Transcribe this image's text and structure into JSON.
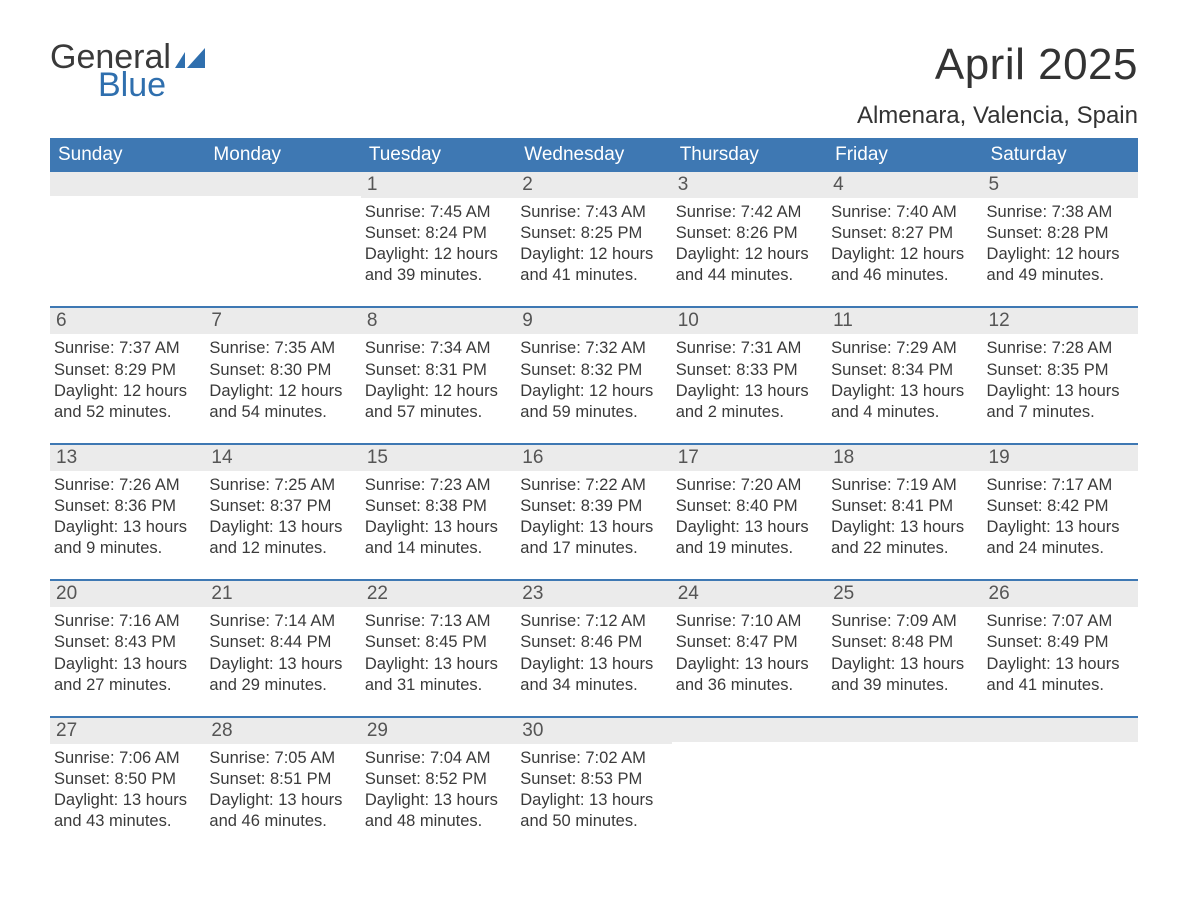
{
  "brand": {
    "line1": "General",
    "line2": "Blue",
    "color1": "#3a3a3a",
    "color2": "#2f6fae"
  },
  "header": {
    "month_title": "April 2025",
    "location": "Almenara, Valencia, Spain"
  },
  "styling": {
    "page_bg": "#ffffff",
    "header_row_bg": "#3e78b3",
    "header_text_color": "#ffffff",
    "date_bar_bg": "#ebebeb",
    "date_text_color": "#555555",
    "body_text_color": "#3a3a3a",
    "week_divider_color": "#3e78b3",
    "month_title_fontsize": 44,
    "location_fontsize": 24,
    "day_header_fontsize": 19,
    "date_fontsize": 19,
    "detail_fontsize": 16.5
  },
  "day_headers": [
    "Sunday",
    "Monday",
    "Tuesday",
    "Wednesday",
    "Thursday",
    "Friday",
    "Saturday"
  ],
  "weeks": [
    [
      {
        "date": "",
        "sunrise": "",
        "sunset": "",
        "daylight": ""
      },
      {
        "date": "",
        "sunrise": "",
        "sunset": "",
        "daylight": ""
      },
      {
        "date": "1",
        "sunrise": "Sunrise: 7:45 AM",
        "sunset": "Sunset: 8:24 PM",
        "daylight": "Daylight: 12 hours and 39 minutes."
      },
      {
        "date": "2",
        "sunrise": "Sunrise: 7:43 AM",
        "sunset": "Sunset: 8:25 PM",
        "daylight": "Daylight: 12 hours and 41 minutes."
      },
      {
        "date": "3",
        "sunrise": "Sunrise: 7:42 AM",
        "sunset": "Sunset: 8:26 PM",
        "daylight": "Daylight: 12 hours and 44 minutes."
      },
      {
        "date": "4",
        "sunrise": "Sunrise: 7:40 AM",
        "sunset": "Sunset: 8:27 PM",
        "daylight": "Daylight: 12 hours and 46 minutes."
      },
      {
        "date": "5",
        "sunrise": "Sunrise: 7:38 AM",
        "sunset": "Sunset: 8:28 PM",
        "daylight": "Daylight: 12 hours and 49 minutes."
      }
    ],
    [
      {
        "date": "6",
        "sunrise": "Sunrise: 7:37 AM",
        "sunset": "Sunset: 8:29 PM",
        "daylight": "Daylight: 12 hours and 52 minutes."
      },
      {
        "date": "7",
        "sunrise": "Sunrise: 7:35 AM",
        "sunset": "Sunset: 8:30 PM",
        "daylight": "Daylight: 12 hours and 54 minutes."
      },
      {
        "date": "8",
        "sunrise": "Sunrise: 7:34 AM",
        "sunset": "Sunset: 8:31 PM",
        "daylight": "Daylight: 12 hours and 57 minutes."
      },
      {
        "date": "9",
        "sunrise": "Sunrise: 7:32 AM",
        "sunset": "Sunset: 8:32 PM",
        "daylight": "Daylight: 12 hours and 59 minutes."
      },
      {
        "date": "10",
        "sunrise": "Sunrise: 7:31 AM",
        "sunset": "Sunset: 8:33 PM",
        "daylight": "Daylight: 13 hours and 2 minutes."
      },
      {
        "date": "11",
        "sunrise": "Sunrise: 7:29 AM",
        "sunset": "Sunset: 8:34 PM",
        "daylight": "Daylight: 13 hours and 4 minutes."
      },
      {
        "date": "12",
        "sunrise": "Sunrise: 7:28 AM",
        "sunset": "Sunset: 8:35 PM",
        "daylight": "Daylight: 13 hours and 7 minutes."
      }
    ],
    [
      {
        "date": "13",
        "sunrise": "Sunrise: 7:26 AM",
        "sunset": "Sunset: 8:36 PM",
        "daylight": "Daylight: 13 hours and 9 minutes."
      },
      {
        "date": "14",
        "sunrise": "Sunrise: 7:25 AM",
        "sunset": "Sunset: 8:37 PM",
        "daylight": "Daylight: 13 hours and 12 minutes."
      },
      {
        "date": "15",
        "sunrise": "Sunrise: 7:23 AM",
        "sunset": "Sunset: 8:38 PM",
        "daylight": "Daylight: 13 hours and 14 minutes."
      },
      {
        "date": "16",
        "sunrise": "Sunrise: 7:22 AM",
        "sunset": "Sunset: 8:39 PM",
        "daylight": "Daylight: 13 hours and 17 minutes."
      },
      {
        "date": "17",
        "sunrise": "Sunrise: 7:20 AM",
        "sunset": "Sunset: 8:40 PM",
        "daylight": "Daylight: 13 hours and 19 minutes."
      },
      {
        "date": "18",
        "sunrise": "Sunrise: 7:19 AM",
        "sunset": "Sunset: 8:41 PM",
        "daylight": "Daylight: 13 hours and 22 minutes."
      },
      {
        "date": "19",
        "sunrise": "Sunrise: 7:17 AM",
        "sunset": "Sunset: 8:42 PM",
        "daylight": "Daylight: 13 hours and 24 minutes."
      }
    ],
    [
      {
        "date": "20",
        "sunrise": "Sunrise: 7:16 AM",
        "sunset": "Sunset: 8:43 PM",
        "daylight": "Daylight: 13 hours and 27 minutes."
      },
      {
        "date": "21",
        "sunrise": "Sunrise: 7:14 AM",
        "sunset": "Sunset: 8:44 PM",
        "daylight": "Daylight: 13 hours and 29 minutes."
      },
      {
        "date": "22",
        "sunrise": "Sunrise: 7:13 AM",
        "sunset": "Sunset: 8:45 PM",
        "daylight": "Daylight: 13 hours and 31 minutes."
      },
      {
        "date": "23",
        "sunrise": "Sunrise: 7:12 AM",
        "sunset": "Sunset: 8:46 PM",
        "daylight": "Daylight: 13 hours and 34 minutes."
      },
      {
        "date": "24",
        "sunrise": "Sunrise: 7:10 AM",
        "sunset": "Sunset: 8:47 PM",
        "daylight": "Daylight: 13 hours and 36 minutes."
      },
      {
        "date": "25",
        "sunrise": "Sunrise: 7:09 AM",
        "sunset": "Sunset: 8:48 PM",
        "daylight": "Daylight: 13 hours and 39 minutes."
      },
      {
        "date": "26",
        "sunrise": "Sunrise: 7:07 AM",
        "sunset": "Sunset: 8:49 PM",
        "daylight": "Daylight: 13 hours and 41 minutes."
      }
    ],
    [
      {
        "date": "27",
        "sunrise": "Sunrise: 7:06 AM",
        "sunset": "Sunset: 8:50 PM",
        "daylight": "Daylight: 13 hours and 43 minutes."
      },
      {
        "date": "28",
        "sunrise": "Sunrise: 7:05 AM",
        "sunset": "Sunset: 8:51 PM",
        "daylight": "Daylight: 13 hours and 46 minutes."
      },
      {
        "date": "29",
        "sunrise": "Sunrise: 7:04 AM",
        "sunset": "Sunset: 8:52 PM",
        "daylight": "Daylight: 13 hours and 48 minutes."
      },
      {
        "date": "30",
        "sunrise": "Sunrise: 7:02 AM",
        "sunset": "Sunset: 8:53 PM",
        "daylight": "Daylight: 13 hours and 50 minutes."
      },
      {
        "date": "",
        "sunrise": "",
        "sunset": "",
        "daylight": ""
      },
      {
        "date": "",
        "sunrise": "",
        "sunset": "",
        "daylight": ""
      },
      {
        "date": "",
        "sunrise": "",
        "sunset": "",
        "daylight": ""
      }
    ]
  ]
}
